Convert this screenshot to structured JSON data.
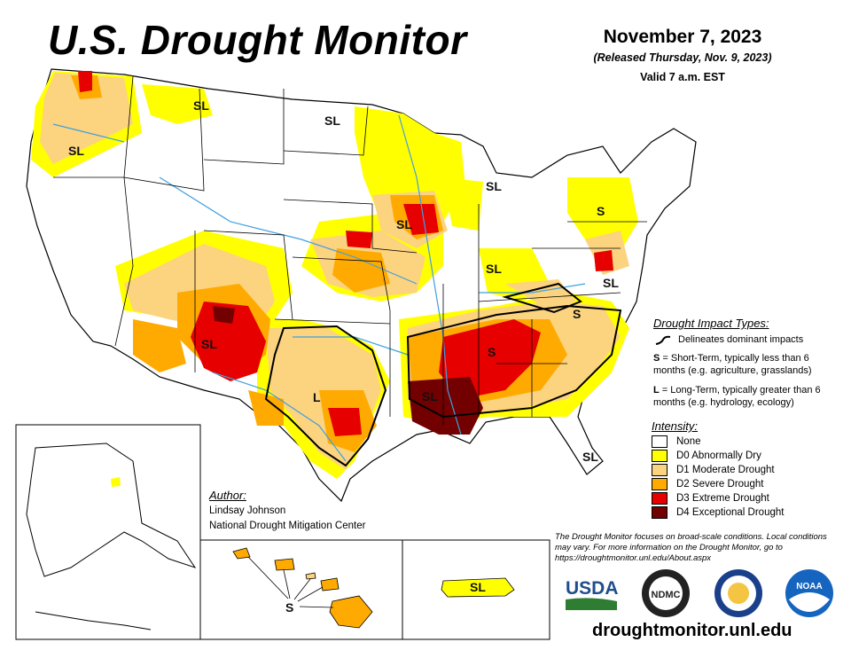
{
  "header": {
    "title": "U.S. Drought Monitor",
    "date": "November 7, 2023",
    "released": "(Released Thursday, Nov. 9, 2023)",
    "valid": "Valid 7 a.m. EST"
  },
  "map_labels": [
    "SL",
    "SL",
    "SL",
    "SL",
    "S",
    "SL",
    "SL",
    "SL",
    "S",
    "SL",
    "S",
    "L",
    "SL",
    "SL",
    "S",
    "SL"
  ],
  "impact_types": {
    "title": "Drought Impact Types:",
    "line_desc": "Delineates dominant impacts",
    "short_term_key": "S",
    "short_term_desc": "= Short-Term, typically less than 6 months (e.g. agriculture, grasslands)",
    "long_term_key": "L",
    "long_term_desc": "= Long-Term, typically greater than 6 months (e.g. hydrology, ecology)"
  },
  "intensity": {
    "title": "Intensity:",
    "levels": [
      {
        "label": "None",
        "color": "#ffffff"
      },
      {
        "label": "D0 Abnormally Dry",
        "color": "#ffff00"
      },
      {
        "label": "D1 Moderate Drought",
        "color": "#fcd37f"
      },
      {
        "label": "D2 Severe Drought",
        "color": "#ffaa00"
      },
      {
        "label": "D3 Extreme Drought",
        "color": "#e60000"
      },
      {
        "label": "D4 Exceptional Drought",
        "color": "#730000"
      }
    ]
  },
  "author": {
    "heading": "Author:",
    "name": "Lindsay Johnson",
    "org": "National Drought Mitigation Center"
  },
  "note": "The Drought Monitor focuses on broad-scale conditions. Local conditions may vary. For more information on the Drought Monitor, go to https://droughtmonitor.unl.edu/About.aspx",
  "logos": {
    "usda": "USDA",
    "ndmc": "NDMC",
    "noaa": "NOAA"
  },
  "url": "droughtmonitor.unl.edu",
  "colors": {
    "river": "#3fa0e0",
    "border": "#000000"
  }
}
